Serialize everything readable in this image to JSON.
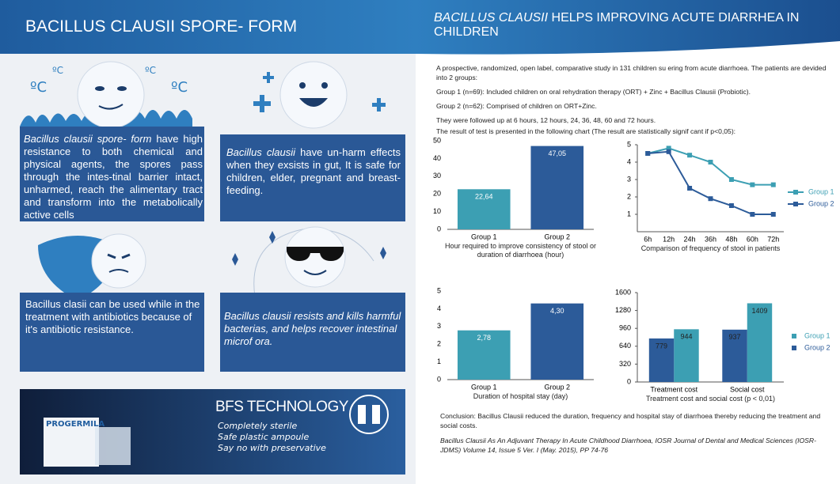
{
  "header": {
    "left_title": "BACILLUS CLAUSII SPORE- FORM",
    "right_title_italic": "BACILLUS CLAUSII",
    "right_title": "HELPS IMPROVING ACUTE DIARRHEA IN CHILDREN"
  },
  "thermo_labels": [
    "ºC",
    "ºC",
    "ºC",
    "ºC"
  ],
  "panels": [
    {
      "lead": "Bacillus clausii spore- form",
      "text": "have high resistance to both chemical and physical agents, the spores pass through the intes-tinal barrier intact, unharmed, reach the alimentary tract and transform into the metabolically active cells"
    },
    {
      "lead": "Bacillus clausii",
      "text": "have un-harm effects when they exsists in gut, It is safe  for children, elder, pregnant and breast-feeding."
    },
    {
      "text": "Bacillus clasii can be used while in the treatment with antibiotics because of it's antibiotic resistance."
    },
    {
      "lead": "Bacillus clausii resists and kills harmful bacterias, and helps recover intestinal microf ora."
    }
  ],
  "bfs": {
    "product": "PROGERMILA",
    "title": "BFS TECHNOLOGY",
    "items": [
      "Completely sterile",
      "Safe plastic ampoule",
      "Say no with preservative"
    ]
  },
  "study": {
    "intro": "A prospective, randomized, open label, comparative study in 131 children su  ering from acute diarrhoea. The patients are devided into 2 groups:",
    "group1": "Group 1 (n=69): Included children on oral rehydration therapy (ORT) + Zinc + Bacillus Clausii (Probiotic).",
    "group2": "Group 2 (n=62): Comprised of children on ORT+Zinc.",
    "followup": "They were followed up at 6 hours, 12 hours, 24, 36, 48, 60 and 72 hours.",
    "result": "The result of test is presented in the following chart (The result are statistically signif cant if p<0,05):",
    "conclusion": "Conclusion: Bacillus Clausii reduced the duration, frequency and hospital stay of diarrhoea thereby reducing the treatment and social costs.",
    "reference": "Bacillus Clausii As An Adjuvant Therapy In Acute Childhood Diarrhoea, IOSR Journal of Dental and Medical Sciences (IOSR-JDMS) Volume 14, Issue 5 Ver. I (May. 2015), PP 74-76"
  },
  "chart_data": [
    {
      "type": "bar",
      "title": "Hour required to improve consistency of stool or duration of diarrhoea (hour)",
      "categories": [
        "Group 1",
        "Group 2"
      ],
      "values": [
        22.64,
        47.05
      ],
      "value_labels": [
        "22,64",
        "47,05"
      ],
      "colors": [
        "#3c9fb3",
        "#2c5b99"
      ],
      "ylim": [
        0,
        50
      ],
      "yticks": [
        0,
        10,
        20,
        30,
        40,
        50
      ],
      "left_axis": false
    },
    {
      "type": "line",
      "title": "Comparison of frequency of stool in patients",
      "categories": [
        "6h",
        "12h",
        "24h",
        "36h",
        "48h",
        "60h",
        "72h"
      ],
      "series": [
        {
          "name": "Group 1",
          "color": "#3c9fb3",
          "values": [
            4.5,
            4.8,
            4.4,
            4,
            3,
            2.7,
            2.7
          ]
        },
        {
          "name": "Group 2",
          "color": "#2c5b99",
          "values": [
            4.5,
            4.6,
            2.5,
            1.9,
            1.5,
            1,
            1
          ]
        }
      ],
      "ylim": [
        0,
        5
      ],
      "yticks": [
        1,
        2,
        3,
        4,
        5
      ],
      "left_axis": true,
      "legend": "right"
    },
    {
      "type": "bar",
      "title": "Duration of hospital stay (day)",
      "categories": [
        "Group 1",
        "Group 2"
      ],
      "values": [
        2.78,
        4.3
      ],
      "value_labels": [
        "2,78",
        "4,30"
      ],
      "colors": [
        "#3c9fb3",
        "#2c5b99"
      ],
      "ylim": [
        0,
        5
      ],
      "yticks": [
        0,
        1,
        2,
        3,
        4,
        5
      ],
      "left_axis": false
    },
    {
      "type": "bar",
      "title": "Treatment cost and social cost (p < 0,01)",
      "categories": [
        "Treatment cost",
        "Social cost"
      ],
      "series": [
        {
          "name": "Group 1",
          "color": "#3c9fb3",
          "values": [
            944,
            1409
          ]
        },
        {
          "name": "Group 2",
          "color": "#2c5b99",
          "values": [
            779,
            937
          ]
        }
      ],
      "ylim": [
        0,
        1600
      ],
      "yticks": [
        0,
        320,
        640,
        960,
        1280,
        1600
      ],
      "left_axis": true,
      "legend": "right"
    }
  ]
}
